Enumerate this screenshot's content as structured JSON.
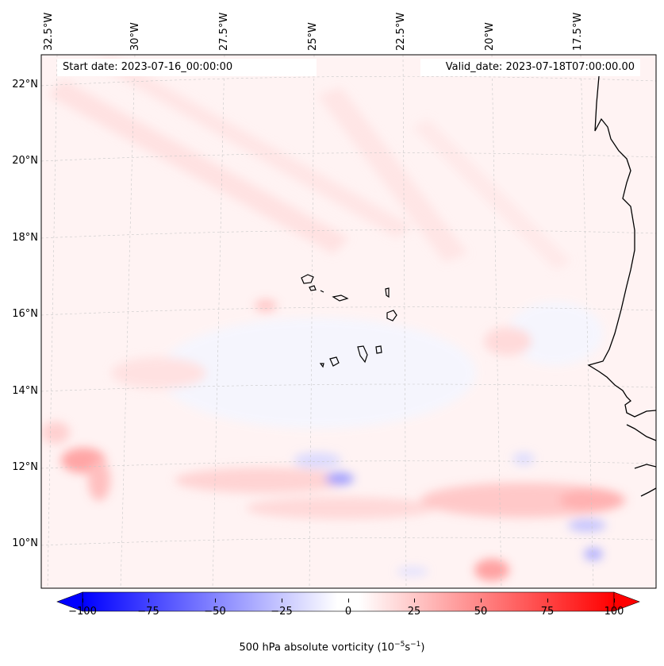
{
  "map": {
    "variable": "500 hPa absolute vorticity",
    "start_date": "Start date: 2023-07-16_00:00:00",
    "valid_date": "Valid_date: 2023-07-18T07:00:00.00",
    "lon_labels": [
      "32.5°W",
      "30°W",
      "27.5°W",
      "25°W",
      "22.5°W",
      "20°W",
      "17.5°W"
    ],
    "lat_labels": [
      "22°N",
      "20°N",
      "18°N",
      "16°N",
      "14°N",
      "12°N",
      "10°N"
    ],
    "colorbar": {
      "ticks": [
        "−100",
        "−75",
        "−50",
        "−25",
        "0",
        "25",
        "50",
        "75",
        "100"
      ],
      "label_main": "500 hPa absolute vorticity (10",
      "label_exp1": "−5",
      "label_mid": "s",
      "label_exp2": "−1",
      "label_close": ")",
      "min": -100,
      "max": 100,
      "min_color": "#0000ff",
      "mid_color": "#ffffff",
      "max_color": "#ff0000"
    },
    "land": [
      "Cape Verde Islands",
      "West African coast"
    ]
  }
}
